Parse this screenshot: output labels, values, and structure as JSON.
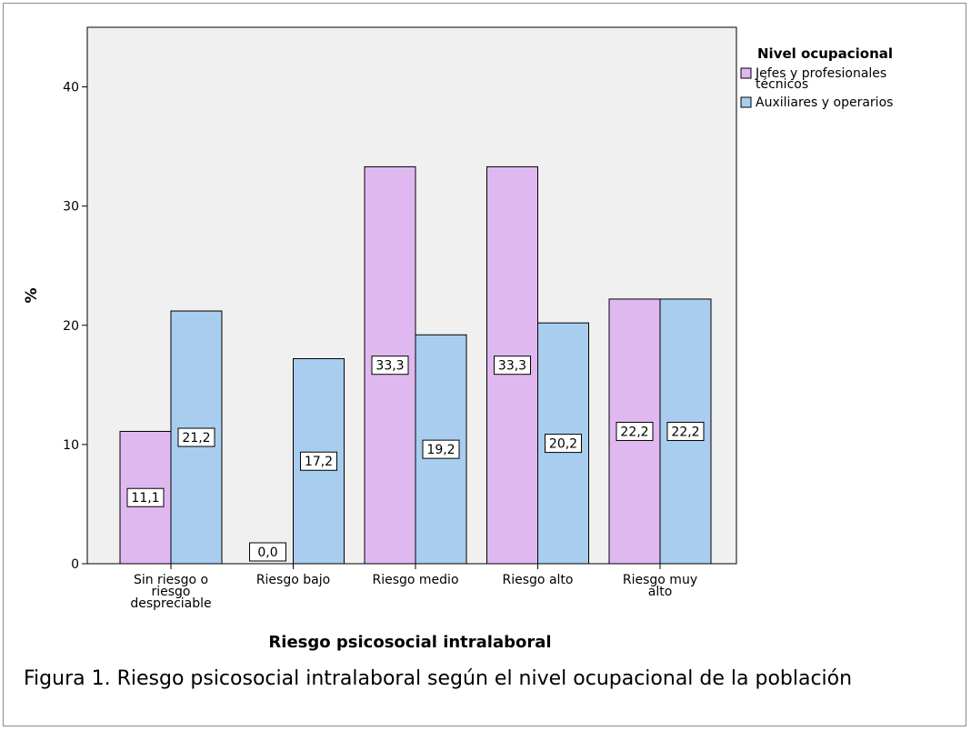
{
  "chart_data": {
    "type": "bar",
    "xlabel": "Riesgo psicosocial intralaboral",
    "ylabel": "%",
    "ylim": [
      0,
      45
    ],
    "yticks": [
      0,
      10,
      20,
      30,
      40
    ],
    "grid": false,
    "categories": [
      [
        "Sin riesgo o",
        "riesgo",
        "despreciable"
      ],
      [
        "Riesgo bajo"
      ],
      [
        "Riesgo medio"
      ],
      [
        "Riesgo alto"
      ],
      [
        "Riesgo muy",
        "alto"
      ]
    ],
    "legend": {
      "title": "Nivel ocupacional",
      "placement": "right"
    },
    "series": [
      {
        "name": "Jefes y profesionales técnicos",
        "legend_lines": [
          "Jefes y profesionales",
          "técnicos"
        ],
        "color": "#e0b8f0",
        "values": [
          11.1,
          0.0,
          33.3,
          33.3,
          22.2
        ],
        "labels": [
          "11,1",
          "0,0",
          "33,3",
          "33,3",
          "22,2"
        ]
      },
      {
        "name": "Auxiliares y operarios",
        "legend_lines": [
          "Auxiliares y operarios"
        ],
        "color": "#a9cdee",
        "values": [
          21.2,
          17.2,
          19.2,
          20.2,
          22.2
        ],
        "labels": [
          "21,2",
          "17,2",
          "19,2",
          "20,2",
          "22,2"
        ]
      }
    ]
  },
  "caption": "Figura 1. Riesgo psicosocial intralaboral según el nivel ocupacional de la población",
  "colors": {
    "plot_background": "#f0f0f0",
    "axis": "#000000"
  }
}
